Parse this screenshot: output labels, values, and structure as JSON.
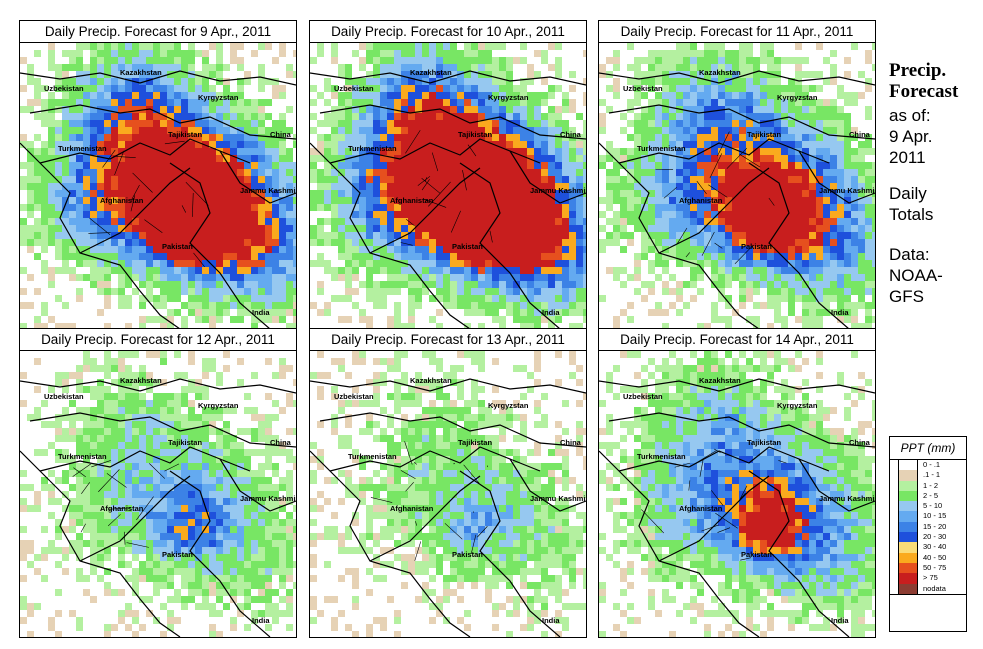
{
  "panels": [
    {
      "title": "Daily Precip. Forecast for  9 Apr., 2011",
      "intensity": 1.0
    },
    {
      "title": "Daily Precip. Forecast for  10 Apr., 2011",
      "intensity": 1.15
    },
    {
      "title": "Daily Precip. Forecast for  11 Apr., 2011",
      "intensity": 0.75
    },
    {
      "title": "Daily Precip. Forecast for  12 Apr., 2011",
      "intensity": 0.35
    },
    {
      "title": "Daily Precip. Forecast for  13 Apr., 2011",
      "intensity": 0.25
    },
    {
      "title": "Daily Precip. Forecast for  14 Apr., 2011",
      "intensity": 0.55
    }
  ],
  "map_labels": {
    "kazakhstan": "Kazakhstan",
    "uzbekistan": "Uzbekistan",
    "kyrgyzstan": "Kyrgyzstan",
    "tajikistan": "Tajikistan",
    "china": "China",
    "turkmenistan": "Turkmenistan",
    "afghanistan": "Afghanistan",
    "jammu": "Jammu Kashmir",
    "pakistan": "Pakistan",
    "india": "India"
  },
  "side": {
    "title_line1": "Precip.",
    "title_line2": "Forecast",
    "asof_line1": "as of:",
    "asof_line2": "9 Apr.",
    "asof_line3": "2011",
    "daily_line1": "Daily",
    "daily_line2": "Totals",
    "data_line1": "Data:",
    "data_line2": "NOAA-",
    "data_line3": "GFS"
  },
  "legend": {
    "title": "PPT (mm)",
    "items": [
      {
        "label": "0 - .1",
        "color": "#ffffff"
      },
      {
        "label": ".1 - 1",
        "color": "#e6d2b5"
      },
      {
        "label": "1 - 2",
        "color": "#b4f0a0"
      },
      {
        "label": "2 - 5",
        "color": "#78e664"
      },
      {
        "label": "5 - 10",
        "color": "#96c8f0"
      },
      {
        "label": "10 - 15",
        "color": "#64aaf0"
      },
      {
        "label": "15 - 20",
        "color": "#3c82e6"
      },
      {
        "label": "20 - 30",
        "color": "#1e50dc"
      },
      {
        "label": "30 - 40",
        "color": "#fadc78"
      },
      {
        "label": "40 - 50",
        "color": "#faaa1e"
      },
      {
        "label": "50 - 75",
        "color": "#e6501e"
      },
      {
        "label": "> 75",
        "color": "#c81e1e"
      },
      {
        "label": "nodata",
        "color": "#8c3c32"
      }
    ]
  }
}
